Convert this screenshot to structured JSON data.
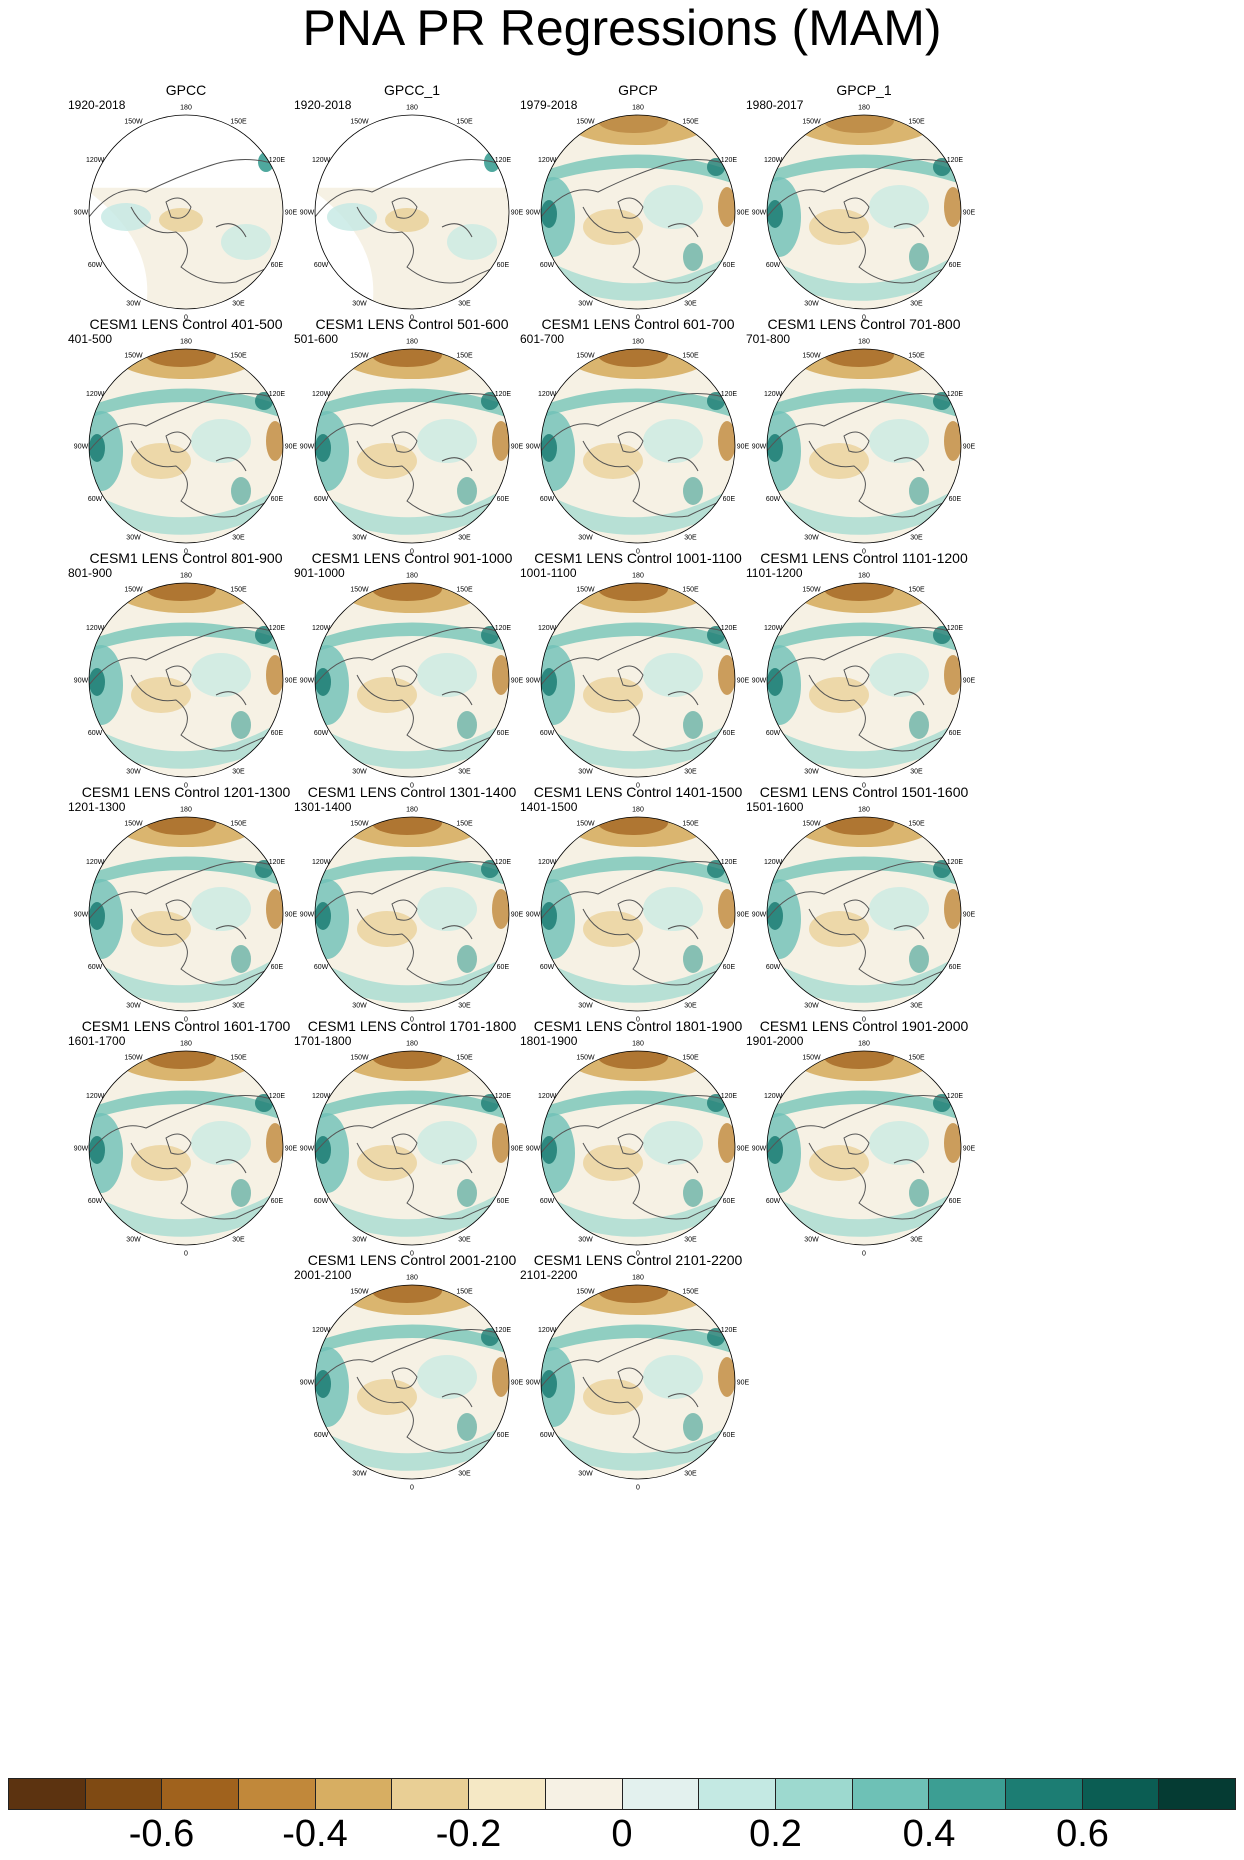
{
  "figure": {
    "title": "PNA PR Regressions (MAM)"
  },
  "map_labels": {
    "top": "180",
    "upper_left": "150W",
    "upper_right": "150E",
    "mid_upper_left": "120W",
    "mid_upper_right": "120E",
    "left": "90W",
    "right": "90E",
    "mid_lower_left": "60W",
    "mid_lower_right": "60E",
    "lower_left": "30W",
    "lower_right": "30E",
    "bottom": "0"
  },
  "panels": [
    {
      "title": "GPCC",
      "period": "1920-2018",
      "pattern": "obs_partial"
    },
    {
      "title": "GPCC_1",
      "period": "1920-2018",
      "pattern": "obs_partial"
    },
    {
      "title": "GPCP",
      "period": "1979-2018",
      "pattern": "obs_full"
    },
    {
      "title": "GPCP_1",
      "period": "1980-2017",
      "pattern": "obs_full"
    },
    {
      "title": "CESM1 LENS Control 401-500",
      "period": "401-500",
      "pattern": "model"
    },
    {
      "title": "CESM1 LENS Control 501-600",
      "period": "501-600",
      "pattern": "model"
    },
    {
      "title": "CESM1 LENS Control 601-700",
      "period": "601-700",
      "pattern": "model"
    },
    {
      "title": "CESM1 LENS Control 701-800",
      "period": "701-800",
      "pattern": "model"
    },
    {
      "title": "CESM1 LENS Control 801-900",
      "period": "801-900",
      "pattern": "model"
    },
    {
      "title": "CESM1 LENS Control 901-1000",
      "period": "901-1000",
      "pattern": "model"
    },
    {
      "title": "CESM1 LENS Control 1001-1100",
      "period": "1001-1100",
      "pattern": "model"
    },
    {
      "title": "CESM1 LENS Control 1101-1200",
      "period": "1101-1200",
      "pattern": "model"
    },
    {
      "title": "CESM1 LENS Control 1201-1300",
      "period": "1201-1300",
      "pattern": "model"
    },
    {
      "title": "CESM1 LENS Control 1301-1400",
      "period": "1301-1400",
      "pattern": "model"
    },
    {
      "title": "CESM1 LENS Control 1401-1500",
      "period": "1401-1500",
      "pattern": "model"
    },
    {
      "title": "CESM1 LENS Control 1501-1600",
      "period": "1501-1600",
      "pattern": "model"
    },
    {
      "title": "CESM1 LENS Control 1601-1700",
      "period": "1601-1700",
      "pattern": "model"
    },
    {
      "title": "CESM1 LENS Control 1701-1800",
      "period": "1701-1800",
      "pattern": "model"
    },
    {
      "title": "CESM1 LENS Control 1801-1900",
      "period": "1801-1900",
      "pattern": "model"
    },
    {
      "title": "CESM1 LENS Control 1901-2000",
      "period": "1901-2000",
      "pattern": "model"
    },
    {
      "title": "CESM1 LENS Control 2001-2100",
      "period": "2001-2100",
      "pattern": "model"
    },
    {
      "title": "CESM1 LENS Control 2101-2200",
      "period": "2101-2200",
      "pattern": "model"
    }
  ],
  "colorbar": {
    "colors": [
      "#5c3310",
      "#7f4a13",
      "#a0621d",
      "#c1883a",
      "#d7ae62",
      "#e9cf95",
      "#f5e8c5",
      "#f6f1e4",
      "#e3f1ee",
      "#c4e9e3",
      "#9dd9cf",
      "#6ec1b6",
      "#3c9e93",
      "#1c7d73",
      "#0b5d53",
      "#053b33"
    ],
    "tick_labels": [
      "-0.6",
      "-0.4",
      "-0.2",
      "0",
      "0.2",
      "0.4",
      "0.6"
    ]
  },
  "colors": {
    "dry": "#c1883a",
    "wet": "#3c9e93",
    "neutral": "#f6f1e4",
    "land_outline": "#555555"
  }
}
